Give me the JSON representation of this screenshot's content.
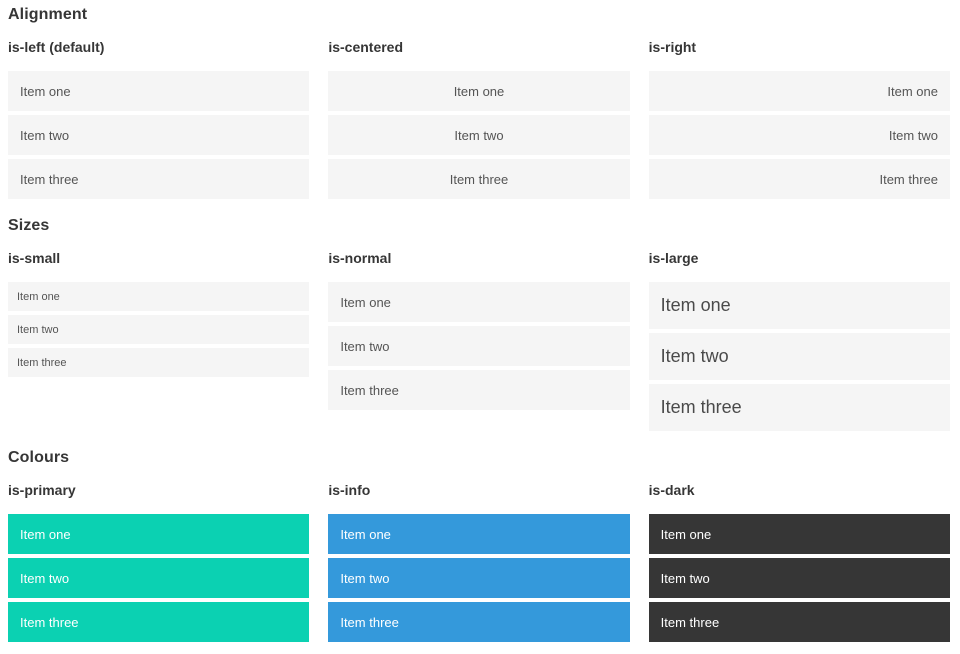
{
  "colors": {
    "primary": "#0bd1b2",
    "info": "#3499db",
    "dark": "#363636",
    "item_background": "#f5f5f5",
    "heading_text": "#363636",
    "item_text": "#555555",
    "item_text_on_colour": "#ffffff"
  },
  "sections": [
    {
      "title": "Alignment",
      "columns": [
        {
          "header": "is-left (default)",
          "items": [
            "Item one",
            "Item two",
            "Item three"
          ]
        },
        {
          "header": "is-centered",
          "items": [
            "Item one",
            "Item two",
            "Item three"
          ]
        },
        {
          "header": "is-right",
          "items": [
            "Item one",
            "Item two",
            "Item three"
          ]
        }
      ]
    },
    {
      "title": "Sizes",
      "columns": [
        {
          "header": "is-small",
          "items": [
            "Item one",
            "Item two",
            "Item three"
          ]
        },
        {
          "header": "is-normal",
          "items": [
            "Item one",
            "Item two",
            "Item three"
          ]
        },
        {
          "header": "is-large",
          "items": [
            "Item one",
            "Item two",
            "Item three"
          ]
        }
      ]
    },
    {
      "title": "Colours",
      "columns": [
        {
          "header": "is-primary",
          "items": [
            "Item one",
            "Item two",
            "Item three"
          ]
        },
        {
          "header": "is-info",
          "items": [
            "Item one",
            "Item two",
            "Item three"
          ]
        },
        {
          "header": "is-dark",
          "items": [
            "Item one",
            "Item two",
            "Item three"
          ]
        }
      ]
    }
  ]
}
